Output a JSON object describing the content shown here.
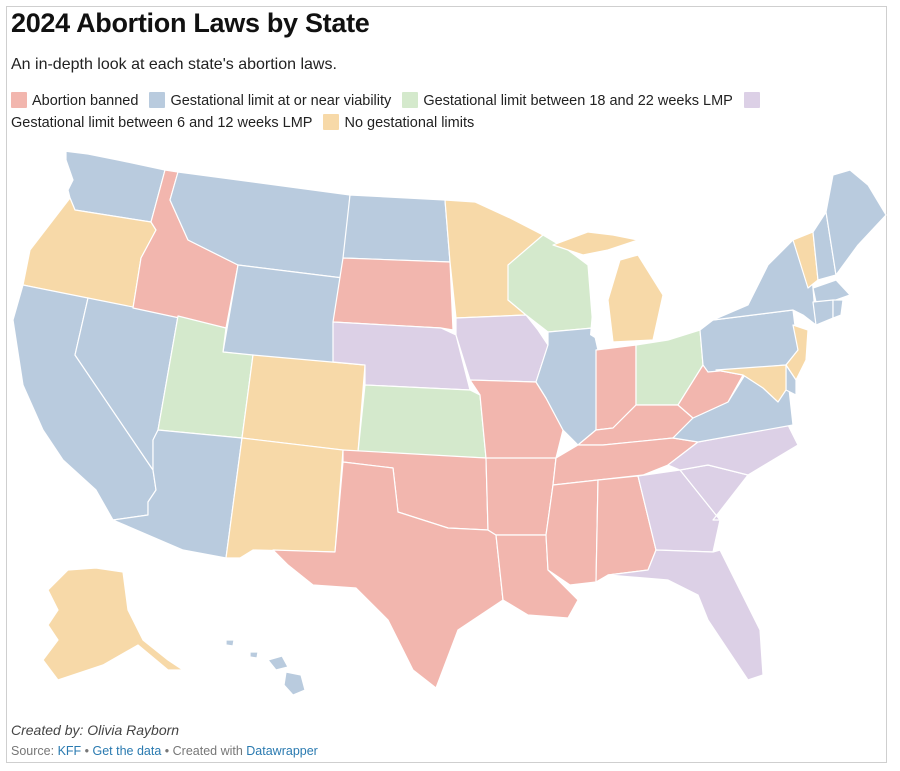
{
  "title": "2024 Abortion Laws by State",
  "subtitle": "An in-depth look at each state's abortion laws.",
  "legend": [
    {
      "label": "Abortion banned",
      "color": "#f2b6ae"
    },
    {
      "label": "Gestational limit at or near viability",
      "color": "#b9cbde"
    },
    {
      "label": "Gestational limit between 18 and 22 weeks LMP",
      "color": "#d4e9cc"
    },
    {
      "label": "Gestational limit between 6 and 12 weeks LMP",
      "color": "#dcd0e6"
    },
    {
      "label": "No gestational limits",
      "color": "#f7d9a8"
    }
  ],
  "states": [
    {
      "abbr": "WA",
      "category": 1
    },
    {
      "abbr": "OR",
      "category": 4
    },
    {
      "abbr": "CA",
      "category": 1
    },
    {
      "abbr": "NV",
      "category": 1
    },
    {
      "abbr": "ID",
      "category": 0
    },
    {
      "abbr": "MT",
      "category": 1
    },
    {
      "abbr": "WY",
      "category": 1
    },
    {
      "abbr": "UT",
      "category": 2
    },
    {
      "abbr": "AZ",
      "category": 1
    },
    {
      "abbr": "CO",
      "category": 4
    },
    {
      "abbr": "NM",
      "category": 4
    },
    {
      "abbr": "ND",
      "category": 1
    },
    {
      "abbr": "SD",
      "category": 0
    },
    {
      "abbr": "NE",
      "category": 3
    },
    {
      "abbr": "KS",
      "category": 2
    },
    {
      "abbr": "OK",
      "category": 0
    },
    {
      "abbr": "TX",
      "category": 0
    },
    {
      "abbr": "MN",
      "category": 4
    },
    {
      "abbr": "IA",
      "category": 3
    },
    {
      "abbr": "MO",
      "category": 0
    },
    {
      "abbr": "AR",
      "category": 0
    },
    {
      "abbr": "LA",
      "category": 0
    },
    {
      "abbr": "WI",
      "category": 2
    },
    {
      "abbr": "IL",
      "category": 1
    },
    {
      "abbr": "MI",
      "category": 4
    },
    {
      "abbr": "IN",
      "category": 0
    },
    {
      "abbr": "OH",
      "category": 2
    },
    {
      "abbr": "KY",
      "category": 0
    },
    {
      "abbr": "TN",
      "category": 0
    },
    {
      "abbr": "MS",
      "category": 0
    },
    {
      "abbr": "AL",
      "category": 0
    },
    {
      "abbr": "GA",
      "category": 3
    },
    {
      "abbr": "FL",
      "category": 3
    },
    {
      "abbr": "SC",
      "category": 3
    },
    {
      "abbr": "NC",
      "category": 3
    },
    {
      "abbr": "VA",
      "category": 1
    },
    {
      "abbr": "WV",
      "category": 0
    },
    {
      "abbr": "PA",
      "category": 1
    },
    {
      "abbr": "NY",
      "category": 1
    },
    {
      "abbr": "VT",
      "category": 4
    },
    {
      "abbr": "NH",
      "category": 1
    },
    {
      "abbr": "ME",
      "category": 1
    },
    {
      "abbr": "MA",
      "category": 1
    },
    {
      "abbr": "CT",
      "category": 1
    },
    {
      "abbr": "RI",
      "category": 1
    },
    {
      "abbr": "NJ",
      "category": 4
    },
    {
      "abbr": "DE",
      "category": 1
    },
    {
      "abbr": "MD",
      "category": 4
    },
    {
      "abbr": "AK",
      "category": 4
    },
    {
      "abbr": "HI",
      "category": 1
    }
  ],
  "credit": "Created by: Olivia Rayborn",
  "footer": {
    "source_label": "Source: ",
    "source_link": "KFF",
    "sep1": " • ",
    "data_link": "Get the data",
    "sep2": " • Created with ",
    "tool_link": "Datawrapper"
  }
}
